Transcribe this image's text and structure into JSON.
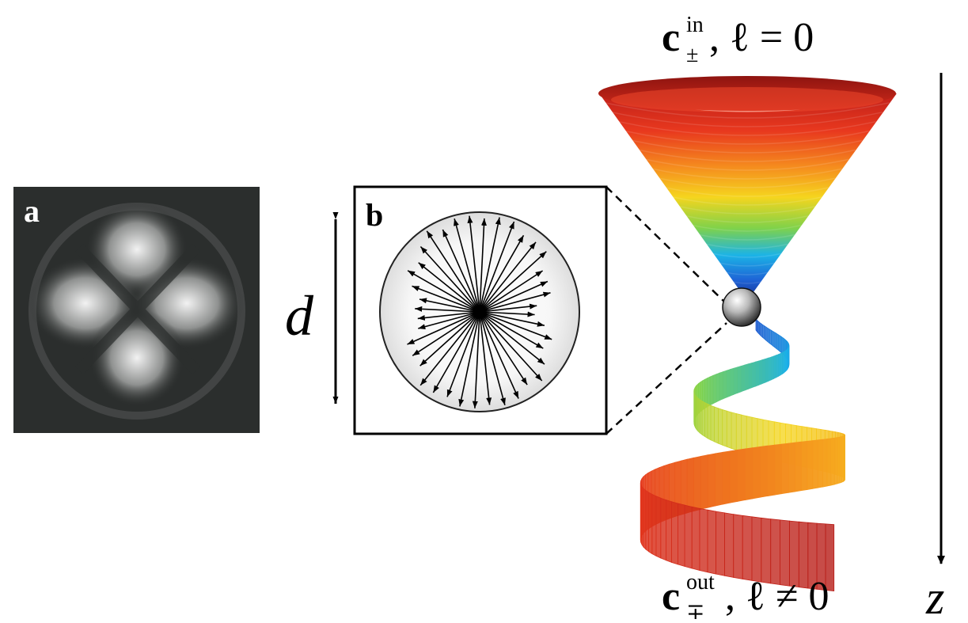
{
  "panels": {
    "a_label": "a",
    "b_label": "b"
  },
  "annotations": {
    "d_label": "d",
    "z_label": "z"
  },
  "equations": {
    "input": {
      "base": "c",
      "superscript": "in",
      "subscript": "±",
      "rest": ", ℓ = 0"
    },
    "output": {
      "base": "c",
      "superscript": "out",
      "subscript": "∓",
      "rest": ", ℓ ≠ 0"
    }
  },
  "colors": {
    "line": "#000000",
    "frame": "#000000",
    "photo_bg": "#2a2d2c"
  },
  "icons": {
    "particle": "sphere-icon",
    "axis": "arrow-down-icon"
  }
}
